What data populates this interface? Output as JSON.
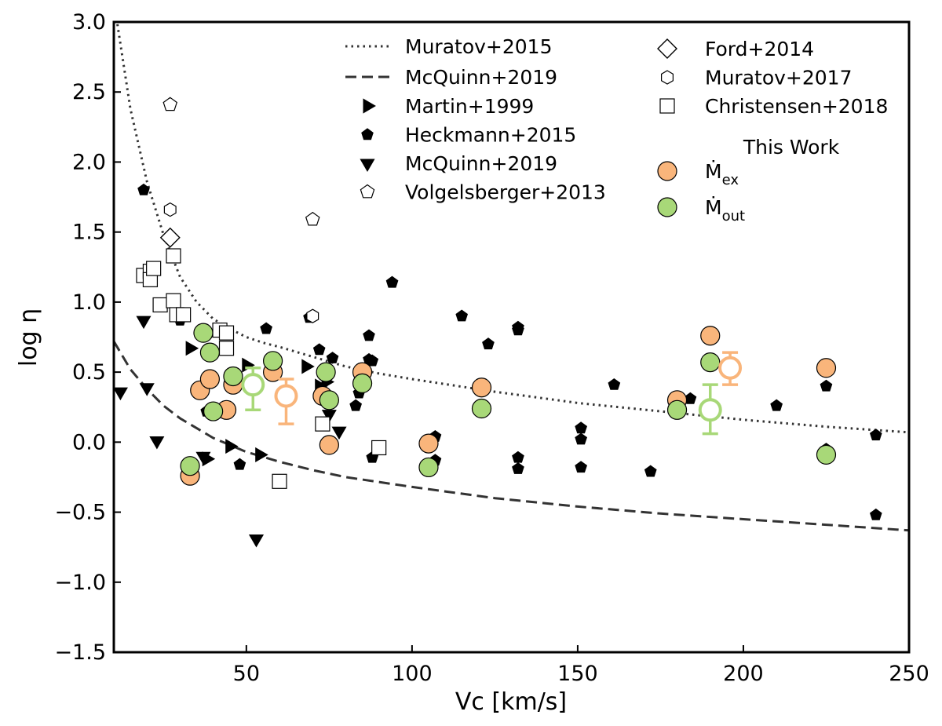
{
  "chart_data": {
    "type": "scatter",
    "title": "",
    "xlabel": "Vc [km/s]",
    "ylabel": "log η",
    "xlim": [
      10,
      250
    ],
    "ylim": [
      -1.5,
      3.0
    ],
    "xticks": [
      50,
      100,
      150,
      200,
      250
    ],
    "xtick_labels": [
      "50",
      "100",
      "150",
      "200",
      "250"
    ],
    "yticks": [
      -1.5,
      -1.0,
      -0.5,
      0.0,
      0.5,
      1.0,
      1.5,
      2.0,
      2.5,
      3.0
    ],
    "ytick_labels": [
      "−1.5",
      "−1.0",
      "−0.5",
      "0.0",
      "0.5",
      "1.0",
      "1.5",
      "2.0",
      "2.5",
      "3.0"
    ],
    "grid": false,
    "legend_title": "This Work",
    "lines": [
      {
        "name": "Muratov+2015",
        "style": "dotted",
        "color": "#333333",
        "x": [
          10,
          15,
          20,
          25,
          30,
          35,
          40,
          45,
          50,
          55,
          60,
          70,
          80,
          90,
          100,
          125,
          150,
          175,
          200,
          225,
          250
        ],
        "y": [
          3.15,
          2.38,
          1.86,
          1.48,
          1.18,
          1.0,
          0.88,
          0.81,
          0.75,
          0.71,
          0.68,
          0.61,
          0.54,
          0.49,
          0.45,
          0.36,
          0.28,
          0.22,
          0.16,
          0.11,
          0.07
        ]
      },
      {
        "name": "McQuinn+2019",
        "style": "dashed",
        "color": "#333333",
        "x": [
          10,
          15,
          20,
          25,
          30,
          40,
          50,
          60,
          70,
          80,
          100,
          125,
          150,
          175,
          200,
          225,
          250
        ],
        "y": [
          0.72,
          0.52,
          0.38,
          0.26,
          0.17,
          0.03,
          -0.07,
          -0.14,
          -0.2,
          -0.25,
          -0.32,
          -0.4,
          -0.46,
          -0.51,
          -0.55,
          -0.59,
          -0.63
        ]
      }
    ],
    "series": [
      {
        "name": "Martin+1999",
        "marker": "triangle-right",
        "filled": true,
        "x": [
          33,
          38,
          45,
          50,
          54,
          68,
          74,
          72
        ],
        "y": [
          0.67,
          -0.12,
          -0.03,
          0.55,
          -0.09,
          0.54,
          0.43,
          0.4
        ]
      },
      {
        "name": "Heckmann+2015",
        "marker": "pentagon",
        "filled": true,
        "x": [
          19,
          30,
          38,
          48,
          56,
          69,
          72,
          76,
          84,
          87,
          87,
          88,
          88,
          94,
          107,
          107,
          115,
          123,
          132,
          132,
          132,
          132,
          151,
          151,
          151,
          161,
          172,
          184,
          210,
          225,
          225,
          240,
          240,
          83
        ],
        "y": [
          1.8,
          0.87,
          0.22,
          -0.16,
          0.81,
          0.89,
          0.66,
          0.6,
          0.35,
          0.59,
          0.76,
          0.58,
          -0.11,
          1.14,
          0.04,
          -0.13,
          0.9,
          0.7,
          0.82,
          0.8,
          -0.11,
          -0.19,
          0.1,
          0.02,
          -0.18,
          0.41,
          -0.21,
          0.31,
          0.26,
          0.4,
          -0.05,
          0.05,
          -0.52,
          0.26
        ]
      },
      {
        "name": "McQuinn+2019",
        "marker": "triangle-down",
        "filled": true,
        "x": [
          12,
          19,
          20,
          23,
          37,
          53,
          75,
          78
        ],
        "y": [
          0.36,
          0.87,
          0.39,
          0.01,
          -0.1,
          -0.69,
          0.2,
          0.08
        ]
      },
      {
        "name": "Volgelsberger+2013",
        "marker": "pentagon",
        "filled": false,
        "x": [
          27,
          70
        ],
        "y": [
          2.41,
          1.59
        ]
      },
      {
        "name": "Ford+2014",
        "marker": "diamond",
        "filled": false,
        "x": [
          27
        ],
        "y": [
          1.46
        ]
      },
      {
        "name": "Muratov+2017",
        "marker": "hexagon",
        "filled": false,
        "x": [
          27,
          70
        ],
        "y": [
          1.66,
          0.9
        ]
      },
      {
        "name": "Christensen+2018",
        "marker": "square",
        "filled": false,
        "x": [
          19,
          21,
          21,
          22,
          24,
          28,
          28,
          29,
          31,
          42,
          44,
          44,
          73,
          90,
          60
        ],
        "y": [
          1.19,
          1.22,
          1.16,
          1.24,
          0.98,
          1.33,
          1.01,
          0.91,
          0.91,
          0.8,
          0.78,
          0.67,
          0.13,
          -0.04,
          -0.28
        ]
      },
      {
        "name": "Ṁex",
        "label_main": "Ṁ",
        "label_sub": "ex",
        "marker": "circle",
        "filled": true,
        "color": "#F9B57B",
        "x": [
          33,
          36,
          39,
          44,
          46,
          58,
          73,
          75,
          85,
          105,
          121,
          180,
          190,
          225
        ],
        "y": [
          -0.24,
          0.37,
          0.45,
          0.23,
          0.41,
          0.5,
          0.33,
          -0.02,
          0.5,
          -0.01,
          0.39,
          0.3,
          0.76,
          0.53
        ]
      },
      {
        "name": "Ṁout",
        "label_main": "Ṁ",
        "label_sub": "out",
        "marker": "circle",
        "filled": true,
        "color": "#A8D878",
        "x": [
          33,
          37,
          39,
          40,
          46,
          58,
          74,
          75,
          85,
          105,
          121,
          180,
          190,
          225
        ],
        "y": [
          -0.17,
          0.78,
          0.64,
          0.22,
          0.47,
          0.58,
          0.5,
          0.3,
          0.42,
          -0.18,
          0.24,
          0.23,
          0.57,
          -0.09
        ]
      }
    ],
    "medians": [
      {
        "name": "Ṁex median (low)",
        "color": "#F9B57B",
        "x": 62,
        "y": 0.33,
        "yerr_low": 0.2,
        "yerr_high": 0.12
      },
      {
        "name": "Ṁex median (high)",
        "color": "#F9B57B",
        "x": 196,
        "y": 0.53,
        "yerr_low": 0.12,
        "yerr_high": 0.11
      },
      {
        "name": "Ṁout median (low)",
        "color": "#A8D878",
        "x": 52,
        "y": 0.41,
        "yerr_low": 0.18,
        "yerr_high": 0.12
      },
      {
        "name": "Ṁout median (high)",
        "color": "#A8D878",
        "x": 190,
        "y": 0.23,
        "yerr_low": 0.17,
        "yerr_high": 0.18
      }
    ]
  }
}
